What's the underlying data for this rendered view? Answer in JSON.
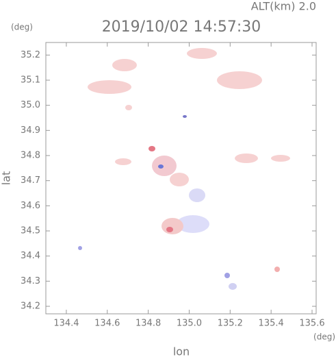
{
  "chart_data": {
    "type": "map",
    "title": "2019/10/02 14:57:30",
    "subtitle": "ALT(km) 2.0",
    "x_label": "lon",
    "y_label": "lat",
    "x_unit": "(deg)",
    "y_unit": "(deg)",
    "xlim": [
      134.3,
      135.62
    ],
    "ylim": [
      34.17,
      35.25
    ],
    "xticks": [
      134.4,
      134.6,
      134.8,
      {
        "value": 135,
        "label": "135.0"
      },
      135.2,
      135.4,
      135.6
    ],
    "yticks": [
      35.2,
      35.1,
      {
        "value": 35,
        "label": "35.0"
      },
      34.9,
      34.8,
      34.7,
      34.6,
      34.5,
      34.4,
      34.3,
      34.2
    ],
    "axis_color": "#999999",
    "text_color": "#777777"
  }
}
